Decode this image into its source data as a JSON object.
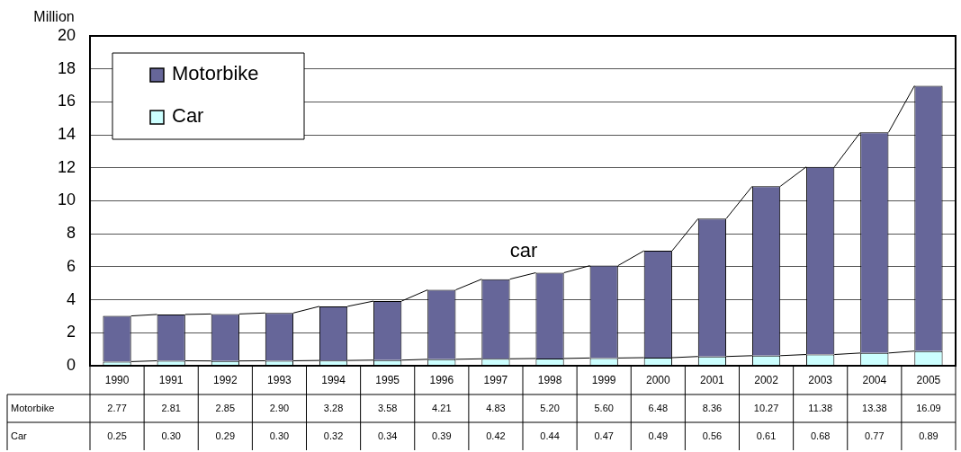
{
  "chart_data": {
    "type": "bar",
    "stacked": true,
    "ylabel": "Million",
    "categories": [
      "1990",
      "1991",
      "1992",
      "1993",
      "1994",
      "1995",
      "1996",
      "1997",
      "1998",
      "1999",
      "2000",
      "2001",
      "2002",
      "2003",
      "2004",
      "2005"
    ],
    "series": [
      {
        "name": "Car",
        "color": "#ccffff",
        "values": [
          0.25,
          0.3,
          0.29,
          0.3,
          0.32,
          0.34,
          0.39,
          0.42,
          0.44,
          0.47,
          0.49,
          0.56,
          0.61,
          0.68,
          0.77,
          0.89
        ],
        "value_labels": [
          "0.25",
          "0.30",
          "0.29",
          "0.30",
          "0.32",
          "0.34",
          "0.39",
          "0.42",
          "0.44",
          "0.47",
          "0.49",
          "0.56",
          "0.61",
          "0.68",
          "0.77",
          "0.89"
        ]
      },
      {
        "name": "Motorbike",
        "color": "#666699",
        "values": [
          2.77,
          2.81,
          2.85,
          2.9,
          3.28,
          3.58,
          4.21,
          4.83,
          5.2,
          5.6,
          6.48,
          8.36,
          10.27,
          11.38,
          13.38,
          16.09
        ],
        "value_labels": [
          "2.77",
          "2.81",
          "2.85",
          "2.90",
          "3.28",
          "3.58",
          "4.21",
          "4.83",
          "5.20",
          "5.60",
          "6.48",
          "8.36",
          "10.27",
          "11.38",
          "13.38",
          "16.09"
        ]
      }
    ],
    "ylim": [
      0,
      20
    ],
    "yticks": [
      0,
      2,
      4,
      6,
      8,
      10,
      12,
      14,
      16,
      18,
      20
    ],
    "grid": "y",
    "legend": "top left",
    "annotations": [
      "car"
    ]
  }
}
